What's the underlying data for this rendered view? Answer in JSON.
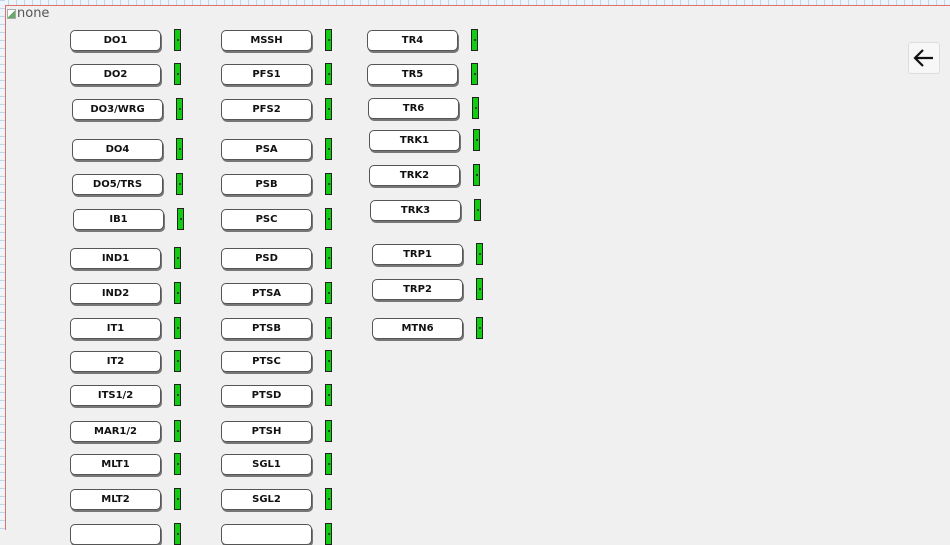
{
  "placeholder_image": {
    "alt_text": "none"
  },
  "back_button": {
    "icon": "arrow-left-icon"
  },
  "indicator_color": "#11cc11",
  "columns": [
    {
      "items": [
        "DO1",
        "DO2",
        "DO3/WRG",
        "DO4",
        "DO5/TRS",
        "IB1",
        "IND1",
        "IND2",
        "IT1",
        "IT2",
        "ITS1/2",
        "MAR1/2",
        "MLT1",
        "MLT2",
        ""
      ]
    },
    {
      "items": [
        "MSSH",
        "PFS1",
        "PFS2",
        "PSA",
        "PSB",
        "PSC",
        "PSD",
        "PTSA",
        "PTSB",
        "PTSC",
        "PTSD",
        "PTSH",
        "SGL1",
        "SGL2",
        ""
      ]
    },
    {
      "items": [
        "TR4",
        "TR5",
        "TR6",
        "TRK1",
        "TRK2",
        "TRK3",
        "TRP1",
        "TRP2",
        "MTN6"
      ]
    }
  ]
}
